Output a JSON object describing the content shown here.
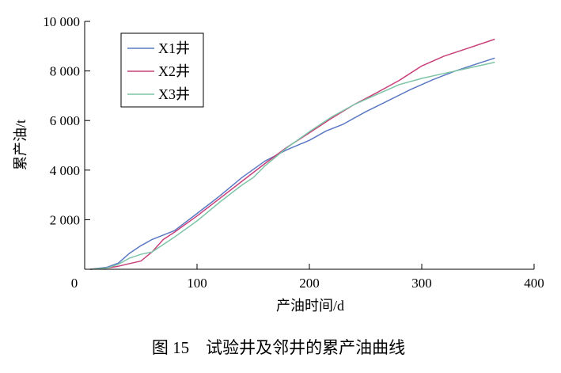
{
  "chart_data": {
    "type": "line",
    "title": "",
    "xlabel": "产油时间/d",
    "ylabel": "累产油/t",
    "xlim": [
      0,
      400
    ],
    "ylim": [
      0,
      10000
    ],
    "x_ticks": [
      0,
      100,
      200,
      300,
      400
    ],
    "x_tick_labels": [
      "0",
      "100",
      "200",
      "300",
      "400"
    ],
    "y_ticks": [
      2000,
      4000,
      6000,
      8000,
      10000
    ],
    "y_tick_labels": [
      "2 000",
      "4 000",
      "6 000",
      "8 000",
      "10 000"
    ],
    "grid": false,
    "legend": {
      "placement": "top-left"
    },
    "series": [
      {
        "name": "X1井",
        "color": "#5b78c3",
        "x": [
          5,
          20,
          30,
          40,
          50,
          60,
          70,
          80,
          100,
          120,
          140,
          160,
          180,
          200,
          215,
          230,
          250,
          270,
          290,
          310,
          330,
          350,
          365
        ],
        "y": [
          0,
          80,
          250,
          650,
          950,
          1200,
          1380,
          1560,
          2250,
          2950,
          3700,
          4350,
          4820,
          5200,
          5580,
          5850,
          6350,
          6800,
          7250,
          7650,
          8000,
          8300,
          8520
        ]
      },
      {
        "name": "X2井",
        "color": "#c8407a",
        "x": [
          5,
          20,
          30,
          40,
          50,
          60,
          70,
          80,
          100,
          120,
          140,
          160,
          180,
          200,
          220,
          240,
          260,
          280,
          300,
          320,
          340,
          365
        ],
        "y": [
          0,
          50,
          120,
          230,
          330,
          700,
          1200,
          1500,
          2150,
          2850,
          3550,
          4250,
          4920,
          5500,
          6100,
          6650,
          7120,
          7620,
          8200,
          8600,
          8900,
          9280
        ]
      },
      {
        "name": "X3井",
        "color": "#7dc4a6",
        "x": [
          5,
          20,
          30,
          40,
          50,
          60,
          70,
          80,
          100,
          120,
          140,
          150,
          160,
          180,
          200,
          220,
          240,
          260,
          280,
          300,
          320,
          340,
          365
        ],
        "y": [
          0,
          50,
          200,
          450,
          600,
          700,
          1000,
          1300,
          1950,
          2700,
          3400,
          3700,
          4150,
          4900,
          5550,
          6150,
          6650,
          7050,
          7450,
          7700,
          7900,
          8100,
          8350
        ]
      }
    ]
  },
  "caption": "图 15    试验井及邻井的累产油曲线"
}
